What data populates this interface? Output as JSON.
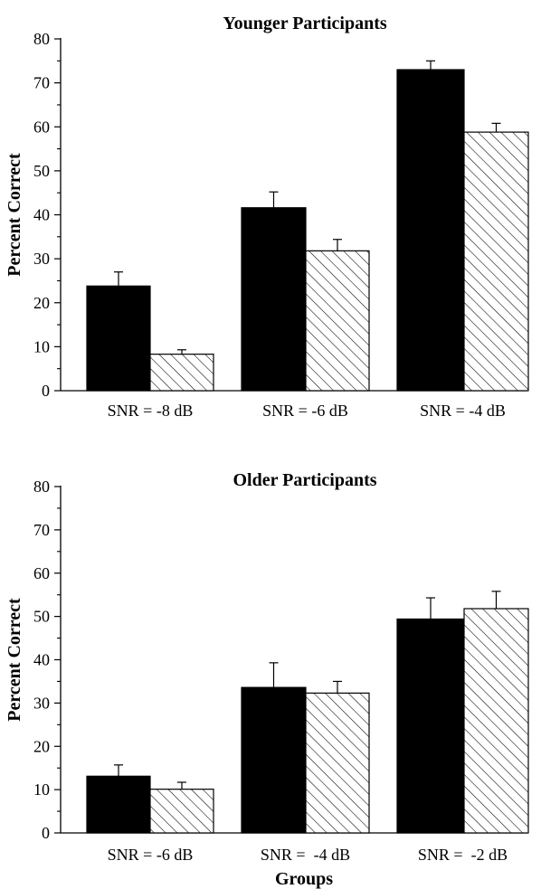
{
  "chart_data": [
    {
      "type": "bar",
      "title": "Younger Participants",
      "ylabel": "Percent Correct",
      "xlabel": "",
      "ylim": [
        0,
        80
      ],
      "yticks": [
        "0",
        "10",
        "20",
        "30",
        "40",
        "50",
        "60",
        "70",
        "80"
      ],
      "categories": [
        "SNR = -8 dB",
        "SNR = -6 dB",
        "SNR = -4 dB"
      ],
      "series": [
        {
          "fill": "solid",
          "color": "#000000",
          "values": [
            23.8,
            41.6,
            73.0
          ],
          "errors": [
            3.2,
            3.6,
            2.0
          ]
        },
        {
          "fill": "hatched",
          "color": "#000000",
          "values": [
            8.3,
            31.8,
            58.8
          ],
          "errors": [
            1.0,
            2.6,
            2.0
          ]
        }
      ],
      "grid": false,
      "legend": "none"
    },
    {
      "type": "bar",
      "title": "Older Participants",
      "ylabel": "Percent Correct",
      "xlabel": "Groups",
      "ylim": [
        0,
        80
      ],
      "yticks": [
        "0",
        "10",
        "20",
        "30",
        "40",
        "50",
        "60",
        "70",
        "80"
      ],
      "categories": [
        "SNR = -6 dB",
        "SNR =  -4 dB",
        "SNR =  -2 dB"
      ],
      "series": [
        {
          "fill": "solid",
          "color": "#000000",
          "values": [
            13.1,
            33.6,
            49.4
          ],
          "errors": [
            2.6,
            5.7,
            4.9
          ]
        },
        {
          "fill": "hatched",
          "color": "#000000",
          "values": [
            10.1,
            32.3,
            51.8
          ],
          "errors": [
            1.6,
            2.7,
            4.0
          ]
        }
      ],
      "grid": false,
      "legend": "none"
    }
  ]
}
